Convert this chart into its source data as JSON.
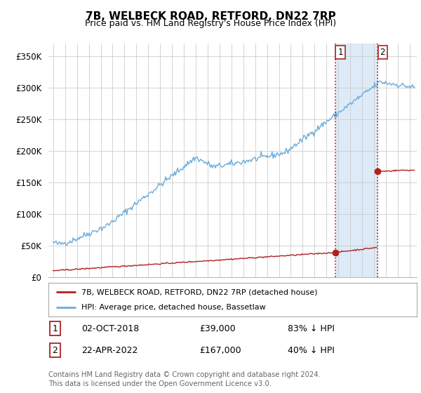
{
  "title": "7B, WELBECK ROAD, RETFORD, DN22 7RP",
  "subtitle": "Price paid vs. HM Land Registry's House Price Index (HPI)",
  "ylabel_ticks": [
    "£0",
    "£50K",
    "£100K",
    "£150K",
    "£200K",
    "£250K",
    "£300K",
    "£350K"
  ],
  "ytick_vals": [
    0,
    50000,
    100000,
    150000,
    200000,
    250000,
    300000,
    350000
  ],
  "ylim": [
    0,
    370000
  ],
  "xlim_start": 1994.6,
  "xlim_end": 2025.6,
  "hpi_color": "#6aabdc",
  "price_color": "#b22020",
  "marker_color": "#b22020",
  "point1_x": 2018.75,
  "point1_y": 39000,
  "point2_x": 2022.3,
  "point2_y": 167000,
  "vline1_x": 2018.75,
  "vline2_x": 2022.3,
  "shade_x1": 2018.75,
  "shade_x2": 2022.3,
  "legend_label1": "7B, WELBECK ROAD, RETFORD, DN22 7RP (detached house)",
  "legend_label2": "HPI: Average price, detached house, Bassetlaw",
  "table_row1": [
    "1",
    "02-OCT-2018",
    "£39,000",
    "83% ↓ HPI"
  ],
  "table_row2": [
    "2",
    "22-APR-2022",
    "£167,000",
    "40% ↓ HPI"
  ],
  "footer1": "Contains HM Land Registry data © Crown copyright and database right 2024.",
  "footer2": "This data is licensed under the Open Government Licence v3.0.",
  "background_color": "#ffffff",
  "plot_bg_color": "#ffffff",
  "grid_color": "#cccccc",
  "shade_color": "#ddeaf7"
}
